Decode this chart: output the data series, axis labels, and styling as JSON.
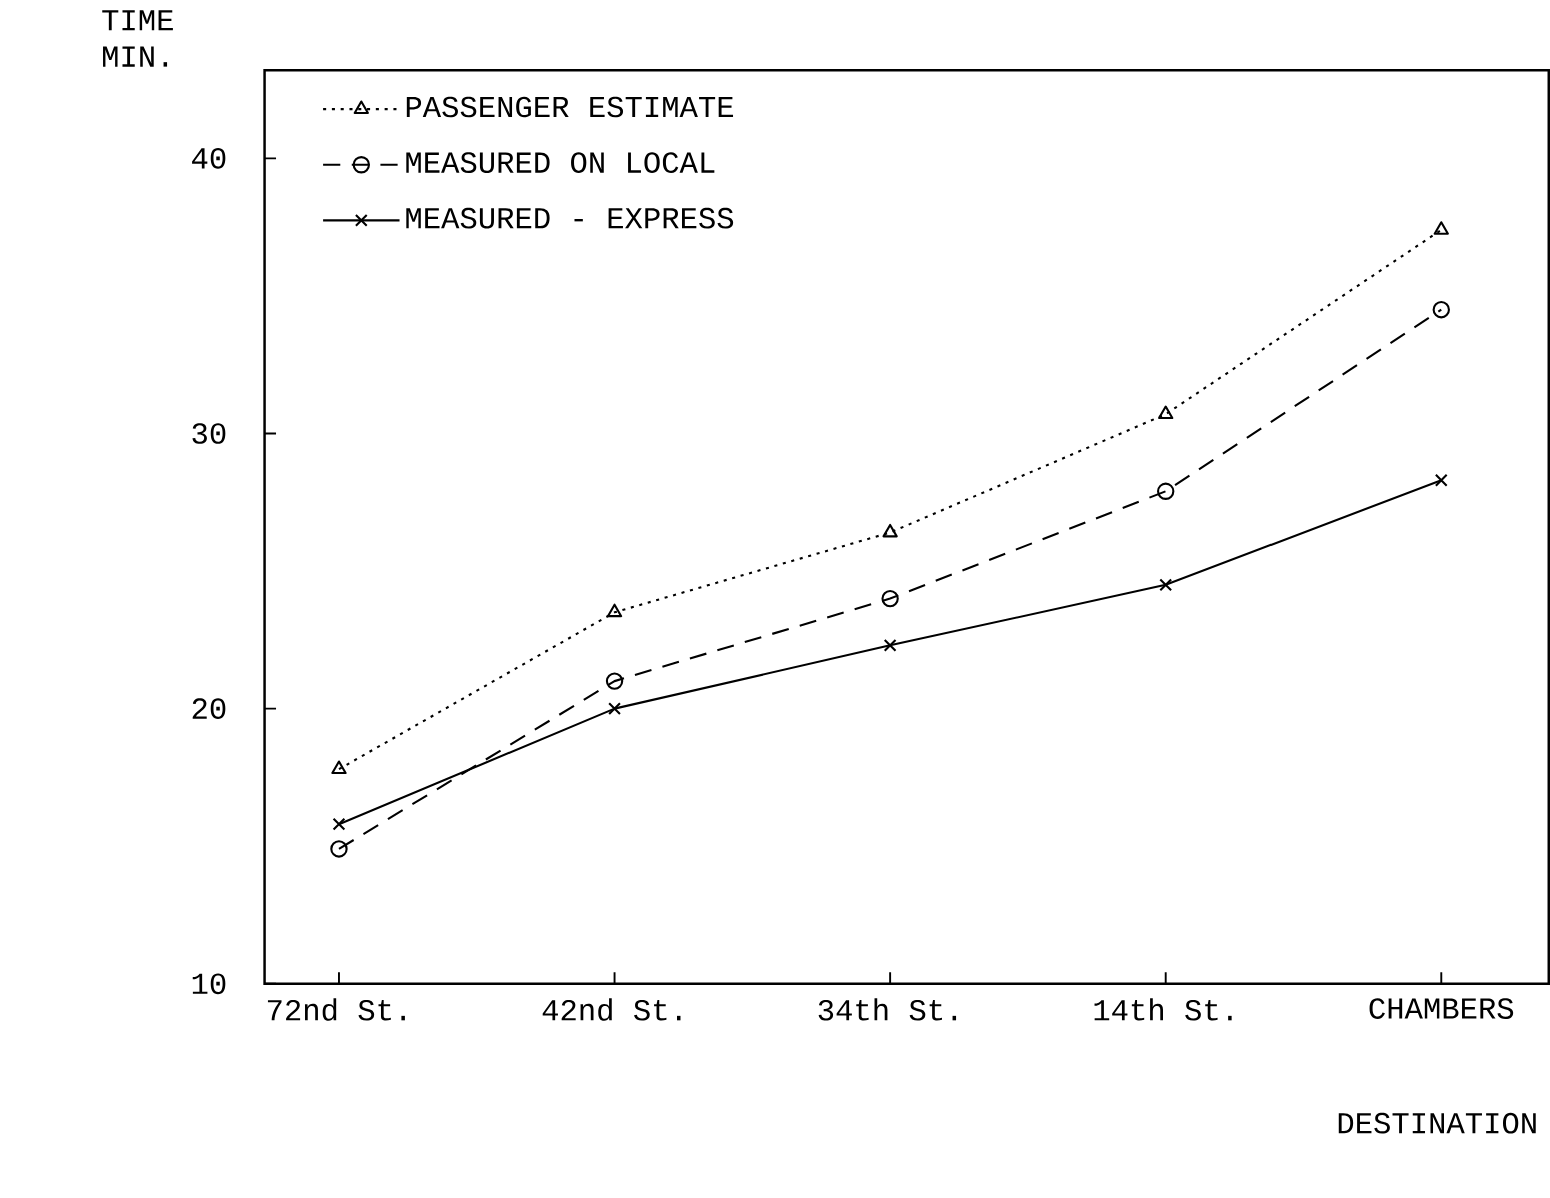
{
  "chart_data": {
    "type": "line",
    "categories": [
      "72nd St.",
      "42nd St.",
      "34th St.",
      "14th St.",
      "CHAMBERS"
    ],
    "xlabel": "DESTINATION",
    "ylabel": "TIME MIN.",
    "ylim": [
      10,
      43.2
    ],
    "yticks": [
      10,
      20,
      30,
      40
    ],
    "legend": "top left",
    "series": [
      {
        "name": "PASSENGER ESTIMATE",
        "color": "#000000",
        "marker": "triangle",
        "line_style": "dotted",
        "values": [
          17.8,
          23.5,
          26.4,
          30.7,
          37.4
        ]
      },
      {
        "name": "MEASURED ON LOCAL",
        "color": "#000000",
        "marker": "circle",
        "line_style": "dashed",
        "values": [
          14.9,
          21.0,
          24.0,
          27.9,
          34.5
        ]
      },
      {
        "name": "MEASURED - EXPRESS",
        "color": "#000000",
        "marker": "cross",
        "line_style": "solid",
        "values": [
          15.8,
          20.0,
          22.3,
          24.5,
          28.3
        ]
      }
    ]
  }
}
